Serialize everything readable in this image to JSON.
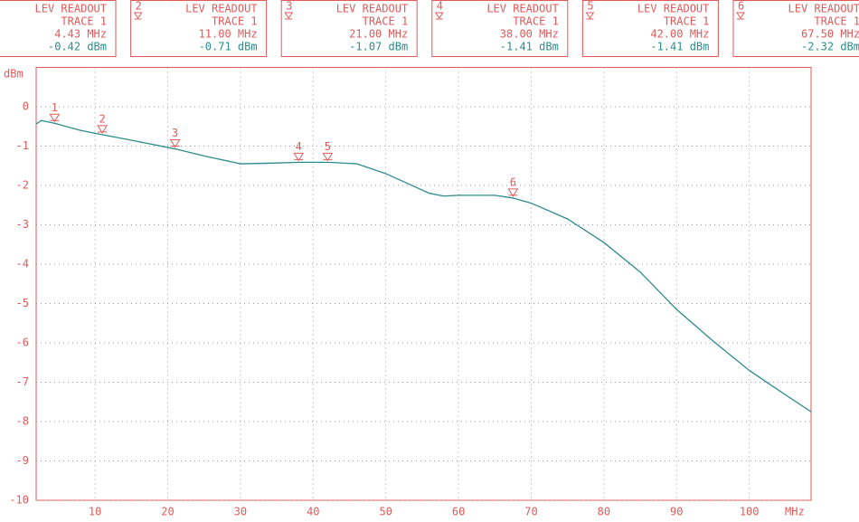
{
  "chart_data": {
    "type": "line",
    "y_label": "dBm",
    "x_label": "MHz",
    "xlim": [
      1.9,
      108.5
    ],
    "xticks": [
      10,
      20,
      30,
      40,
      50,
      60,
      70,
      80,
      90,
      100
    ],
    "ylim": [
      -10,
      1
    ],
    "yticks": [
      0,
      -1,
      -2,
      -3,
      -4,
      -5,
      -6,
      -7,
      -8,
      -9,
      -10
    ],
    "grid": true,
    "series": [
      {
        "name": "TRACE 1",
        "color": "#2e8b8b",
        "x": [
          1.9,
          2.6,
          4.43,
          8,
          11,
          15,
          21,
          25,
          30,
          35,
          38,
          42,
          46,
          50,
          53,
          56,
          58,
          60,
          65,
          67.5,
          70,
          75,
          80,
          85,
          90,
          95,
          100,
          104,
          108.5
        ],
        "values": [
          -0.44,
          -0.35,
          -0.42,
          -0.6,
          -0.71,
          -0.85,
          -1.07,
          -1.25,
          -1.45,
          -1.43,
          -1.41,
          -1.41,
          -1.45,
          -1.7,
          -1.95,
          -2.2,
          -2.27,
          -2.25,
          -2.25,
          -2.32,
          -2.45,
          -2.85,
          -3.45,
          -4.2,
          -5.15,
          -5.95,
          -6.7,
          -7.2,
          -7.75
        ]
      }
    ],
    "markers": [
      {
        "label": "1",
        "readout": "LEV READOUT",
        "trace": "TRACE 1",
        "x": 4.43,
        "x_label": "4.43 MHz",
        "value": -0.42,
        "value_label": "-0.42 dBm"
      },
      {
        "label": "2",
        "readout": "LEV READOUT",
        "trace": "TRACE 1",
        "x": 11,
        "x_label": "11.00 MHz",
        "value": -0.71,
        "value_label": "-0.71 dBm"
      },
      {
        "label": "3",
        "readout": "LEV READOUT",
        "trace": "TRACE 1",
        "x": 21,
        "x_label": "21.00 MHz",
        "value": -1.07,
        "value_label": "-1.07 dBm"
      },
      {
        "label": "4",
        "readout": "LEV READOUT",
        "trace": "TRACE 1",
        "x": 38,
        "x_label": "38.00 MHz",
        "value": -1.41,
        "value_label": "-1.41 dBm"
      },
      {
        "label": "5",
        "readout": "LEV READOUT",
        "trace": "TRACE 1",
        "x": 42,
        "x_label": "42.00 MHz",
        "value": -1.41,
        "value_label": "-1.41 dBm"
      },
      {
        "label": "6",
        "readout": "LEV READOUT",
        "trace": "TRACE 1",
        "x": 67.5,
        "x_label": "67.50 MHz",
        "value": -2.32,
        "value_label": "-2.32 dBm"
      }
    ]
  }
}
